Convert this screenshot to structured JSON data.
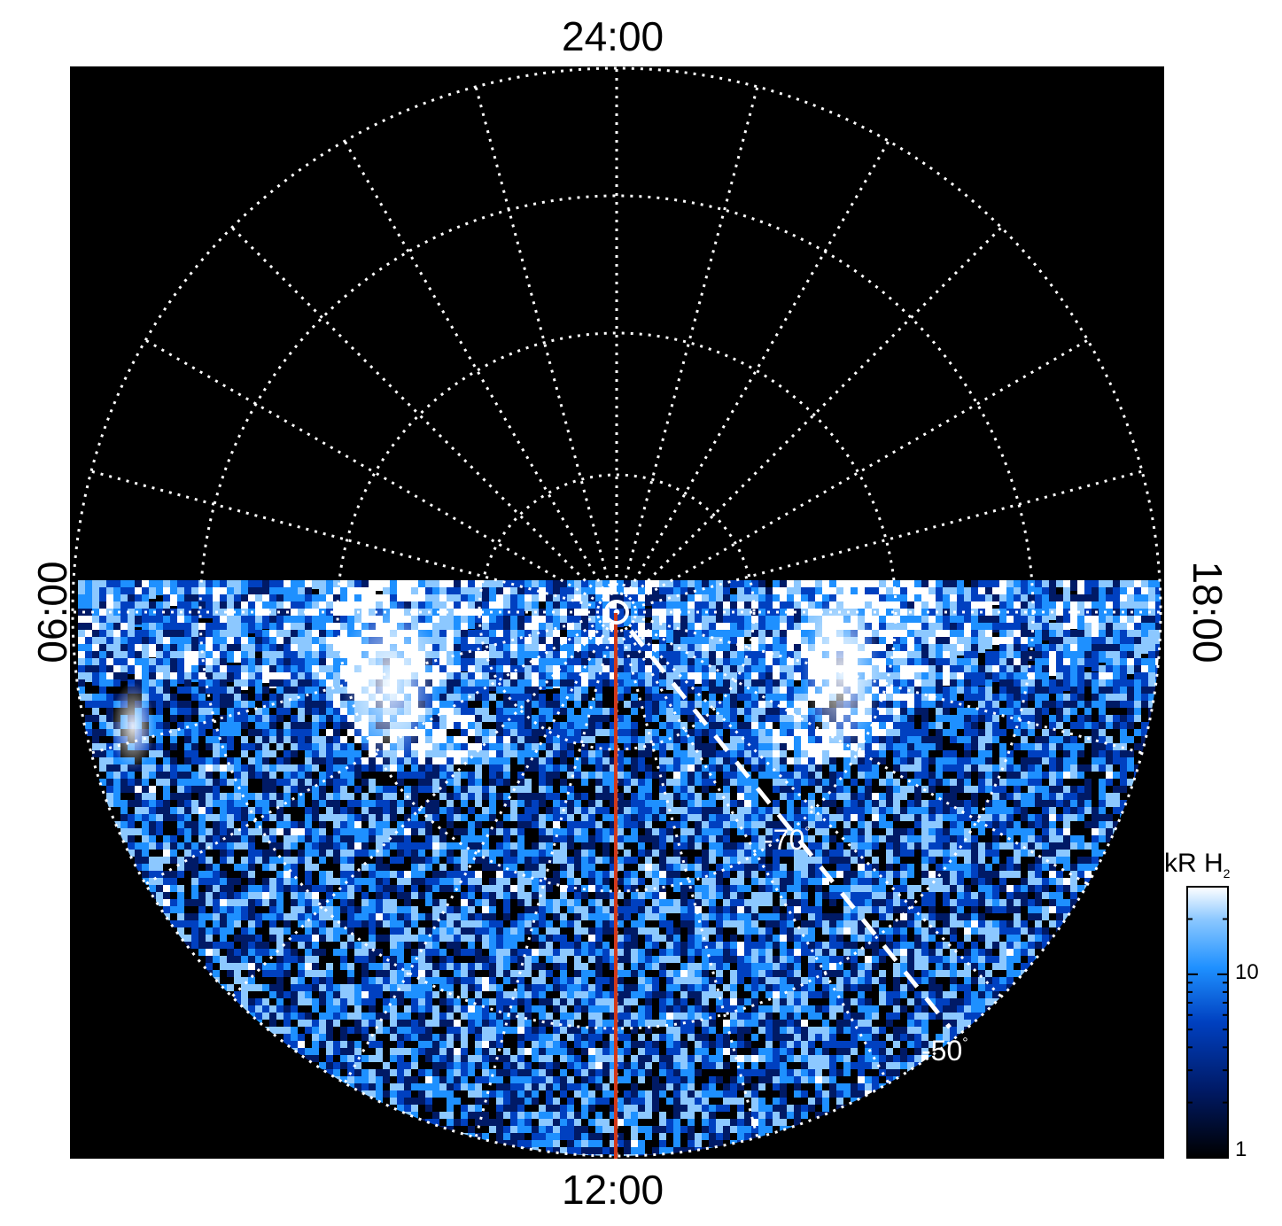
{
  "local_time_labels": {
    "top": "24:00",
    "bottom": "12:00",
    "left": "06:00",
    "right": "18:00"
  },
  "latitude_labels": {
    "inner": "-70",
    "outer": "-50",
    "degree_symbol": "°"
  },
  "colorbar": {
    "title_main": "kR H",
    "title_sub": "2",
    "ticks": [
      "10",
      "1"
    ],
    "scale": "log",
    "colors": [
      "#000000",
      "#001a66",
      "#0040c0",
      "#1e90ff",
      "#8cc8ff",
      "#ffffff"
    ]
  },
  "colors": {
    "background": "#000000",
    "grid": "#ffffff",
    "meridian_line": "#d2391a",
    "page": "#ffffff"
  }
}
